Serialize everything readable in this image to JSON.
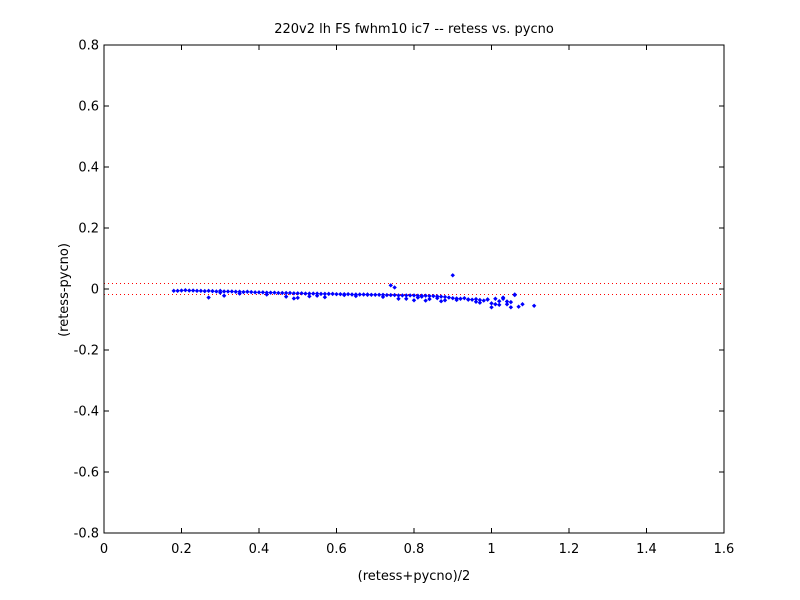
{
  "chart_data": {
    "type": "scatter",
    "title": "220v2 lh FS fwhm10 ic7 -- retess vs. pycno",
    "xlabel": "(retess+pycno)/2",
    "ylabel": "(retess-pycno)",
    "xlim": [
      0,
      1.6
    ],
    "ylim": [
      -0.8,
      0.8
    ],
    "xticks": [
      0,
      0.2,
      0.4,
      0.6,
      0.8,
      1,
      1.2,
      1.4,
      1.6
    ],
    "yticks": [
      -0.8,
      -0.6,
      -0.4,
      -0.2,
      0,
      0.2,
      0.4,
      0.6,
      0.8
    ],
    "xtick_labels": [
      "0",
      "0.2",
      "0.4",
      "0.6",
      "0.8",
      "1",
      "1.2",
      "1.4",
      "1.6"
    ],
    "ytick_labels": [
      "-0.8",
      "-0.6",
      "-0.4",
      "-0.2",
      "0",
      "0.2",
      "0.4",
      "0.6",
      "0.8"
    ],
    "grid": false,
    "marker_color": "#0000ff",
    "reference_line_color": "#ff0000",
    "reference_lines_y": [
      0.018,
      -0.018
    ],
    "series": [
      {
        "x": [
          0.18,
          0.19,
          0.2,
          0.21,
          0.22,
          0.23,
          0.24,
          0.25,
          0.26,
          0.27,
          0.28,
          0.29,
          0.3,
          0.31,
          0.32,
          0.33,
          0.34,
          0.35,
          0.36,
          0.37,
          0.38,
          0.39,
          0.4,
          0.41,
          0.42,
          0.43,
          0.44,
          0.45,
          0.46,
          0.47,
          0.48,
          0.49,
          0.5,
          0.51,
          0.52,
          0.53,
          0.54,
          0.55,
          0.56,
          0.57,
          0.58,
          0.59,
          0.6,
          0.61,
          0.62,
          0.63,
          0.64,
          0.65,
          0.66,
          0.67,
          0.68,
          0.69,
          0.7,
          0.71,
          0.72,
          0.73,
          0.74,
          0.75,
          0.76,
          0.77,
          0.78,
          0.79,
          0.8,
          0.81,
          0.82,
          0.83,
          0.84,
          0.85,
          0.86,
          0.87,
          0.88,
          0.89,
          0.9,
          0.91,
          0.92,
          0.93,
          0.94,
          0.95,
          0.96,
          0.97,
          0.98,
          0.99,
          1.0,
          1.01,
          1.02,
          1.03,
          1.04,
          1.05,
          1.06,
          1.08,
          1.11,
          0.27,
          0.31,
          0.47,
          0.49,
          0.5,
          0.53,
          0.57,
          0.65,
          0.74,
          0.75,
          0.76,
          0.8,
          0.81,
          0.82,
          0.84,
          0.86,
          0.88,
          0.9,
          0.96,
          0.99,
          1.0,
          1.02,
          1.03,
          1.05,
          1.07,
          0.3,
          0.35,
          0.42,
          0.55,
          0.62,
          0.68,
          0.72,
          0.78,
          0.83,
          0.87,
          0.91,
          0.94,
          0.97,
          1.01,
          1.04,
          1.06
        ],
        "y": [
          -0.006,
          -0.006,
          -0.005,
          -0.004,
          -0.005,
          -0.005,
          -0.006,
          -0.006,
          -0.007,
          -0.006,
          -0.007,
          -0.008,
          -0.006,
          -0.008,
          -0.008,
          -0.008,
          -0.009,
          -0.009,
          -0.01,
          -0.009,
          -0.01,
          -0.011,
          -0.011,
          -0.011,
          -0.012,
          -0.012,
          -0.012,
          -0.013,
          -0.013,
          -0.013,
          -0.013,
          -0.014,
          -0.014,
          -0.014,
          -0.015,
          -0.015,
          -0.015,
          -0.015,
          -0.016,
          -0.016,
          -0.016,
          -0.016,
          -0.017,
          -0.017,
          -0.017,
          -0.017,
          -0.018,
          -0.018,
          -0.018,
          -0.018,
          -0.018,
          -0.019,
          -0.019,
          -0.019,
          -0.019,
          -0.02,
          -0.02,
          -0.02,
          -0.021,
          -0.021,
          -0.021,
          -0.021,
          -0.021,
          -0.022,
          -0.022,
          -0.022,
          -0.023,
          -0.023,
          -0.024,
          -0.025,
          -0.026,
          -0.028,
          -0.03,
          -0.031,
          -0.032,
          -0.03,
          -0.034,
          -0.035,
          -0.033,
          -0.036,
          -0.038,
          -0.034,
          -0.047,
          -0.05,
          -0.04,
          -0.032,
          -0.041,
          -0.043,
          -0.018,
          -0.05,
          -0.055,
          -0.028,
          -0.022,
          -0.025,
          -0.031,
          -0.029,
          -0.024,
          -0.027,
          -0.023,
          0.012,
          0.005,
          -0.032,
          -0.037,
          -0.028,
          -0.025,
          -0.033,
          -0.03,
          -0.037,
          0.045,
          -0.042,
          -0.035,
          -0.06,
          -0.052,
          -0.028,
          -0.06,
          -0.058,
          -0.012,
          -0.015,
          -0.018,
          -0.022,
          -0.02,
          -0.019,
          -0.026,
          -0.032,
          -0.038,
          -0.04,
          -0.036,
          -0.035,
          -0.045,
          -0.032,
          -0.05,
          -0.02
        ]
      }
    ]
  }
}
